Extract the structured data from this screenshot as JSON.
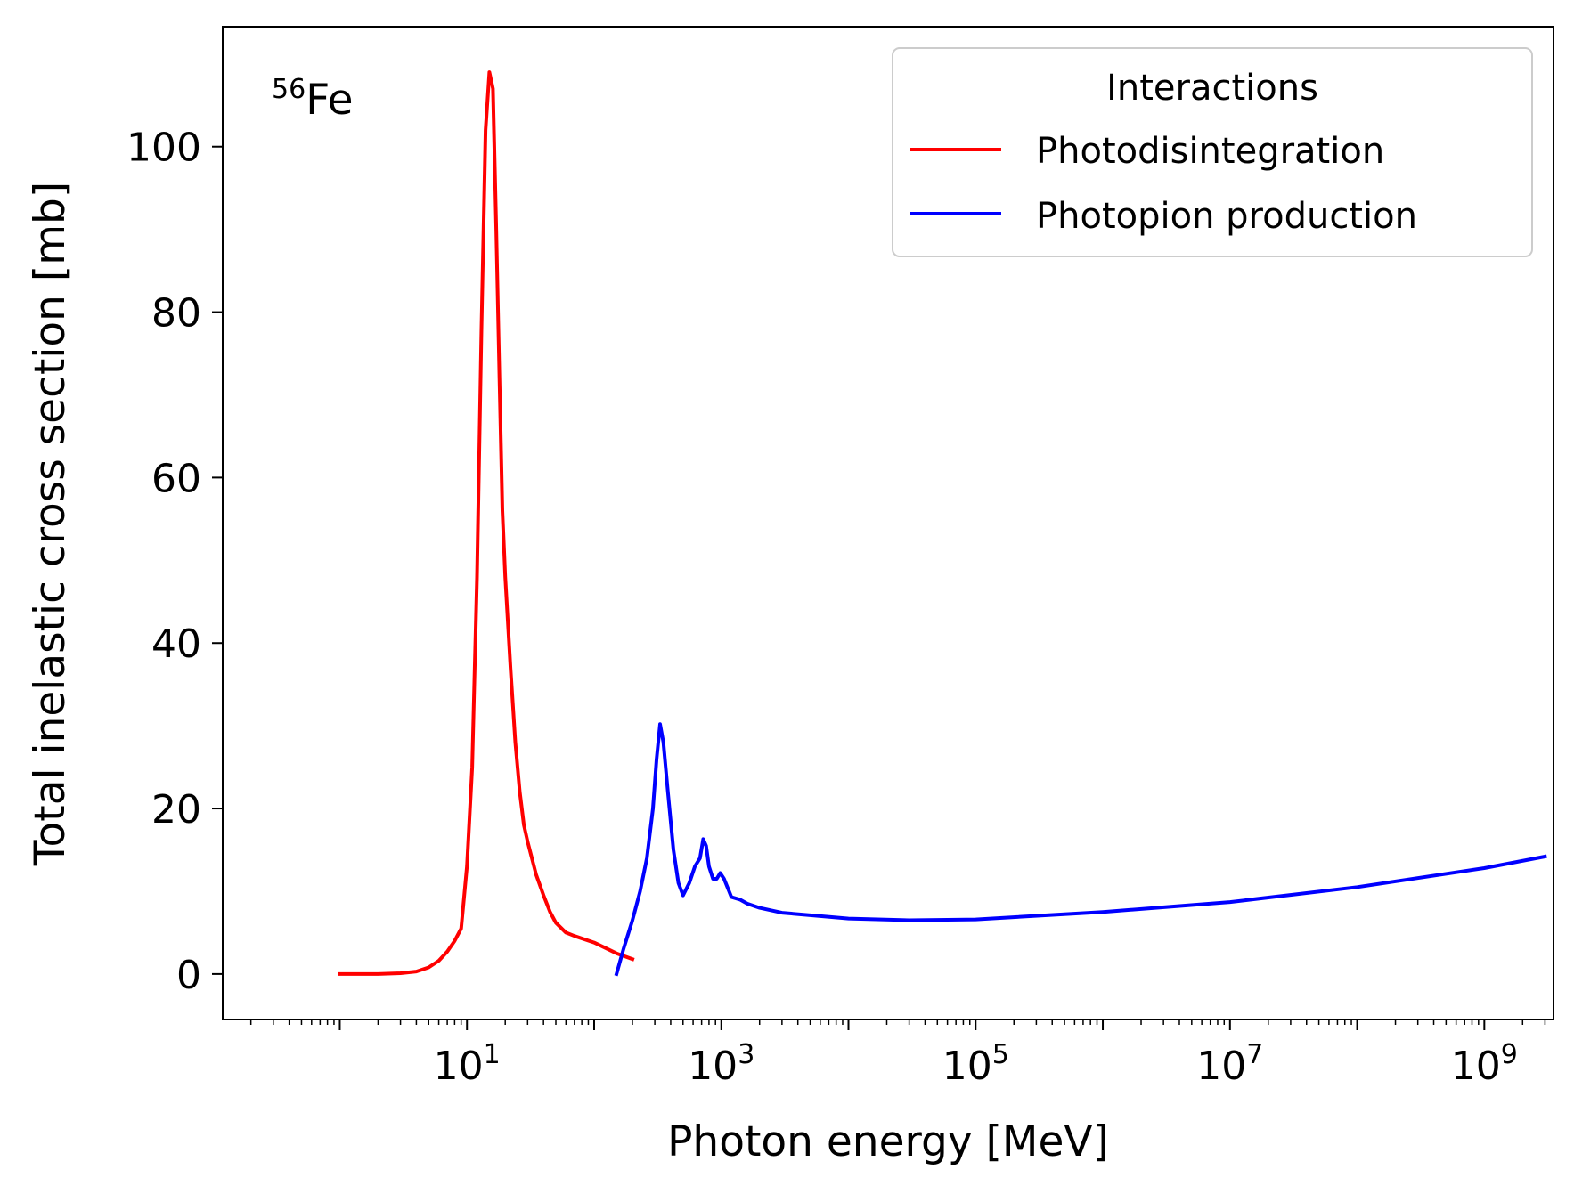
{
  "chart_data": {
    "type": "line",
    "x_scale": "log",
    "xlabel": "Photon energy [MeV]",
    "ylabel": "Total inelastic cross section [mb]",
    "xlim": [
      0.12,
      3500000000.0
    ],
    "ylim": [
      -5.5,
      114.5
    ],
    "grid": false,
    "annotation": {
      "base": "Fe",
      "superscript": "56"
    },
    "x_ticks": [
      {
        "value": 10,
        "base": "10",
        "exp": "1"
      },
      {
        "value": 1000,
        "base": "10",
        "exp": "3"
      },
      {
        "value": 100000,
        "base": "10",
        "exp": "5"
      },
      {
        "value": 10000000,
        "base": "10",
        "exp": "7"
      },
      {
        "value": 1000000000,
        "base": "10",
        "exp": "9"
      }
    ],
    "y_ticks": [
      {
        "value": 0,
        "label": "0"
      },
      {
        "value": 20,
        "label": "20"
      },
      {
        "value": 40,
        "label": "40"
      },
      {
        "value": 60,
        "label": "60"
      },
      {
        "value": 80,
        "label": "80"
      },
      {
        "value": 100,
        "label": "100"
      }
    ],
    "legend": {
      "title": "Interactions",
      "placement": "top-right"
    },
    "series": [
      {
        "name": "Photodisintegration",
        "color": "#ff0000",
        "x": [
          1,
          2,
          3,
          4,
          5,
          6,
          7,
          8,
          9,
          10,
          11,
          12,
          13,
          14,
          15,
          16,
          17,
          18,
          19,
          20,
          22,
          24,
          26,
          28,
          30,
          35,
          40,
          45,
          50,
          60,
          70,
          100,
          150,
          200
        ],
        "y": [
          0,
          0,
          0.1,
          0.3,
          0.8,
          1.6,
          2.7,
          4.0,
          5.5,
          13,
          25,
          48,
          78,
          102,
          109,
          107,
          90,
          72,
          56,
          48,
          37,
          28,
          22,
          18,
          16,
          12,
          9.5,
          7.5,
          6.2,
          5,
          4.6,
          3.8,
          2.5,
          1.8
        ]
      },
      {
        "name": "Photopion production",
        "color": "#0000ff",
        "x": [
          150,
          170,
          200,
          230,
          260,
          290,
          310,
          330,
          350,
          380,
          420,
          460,
          500,
          560,
          620,
          680,
          720,
          760,
          800,
          860,
          920,
          980,
          1050,
          1200,
          1400,
          1600,
          2000,
          3000,
          5000,
          10000,
          30000,
          100000,
          1000000,
          10000000,
          100000000,
          1000000000,
          3000000000
        ],
        "y": [
          0,
          3,
          6.5,
          10,
          14,
          20,
          26,
          30.2,
          28,
          22,
          15,
          11,
          9.5,
          11,
          13,
          14,
          16.3,
          15.5,
          13,
          11.5,
          11.5,
          12.2,
          11.5,
          9.3,
          9,
          8.5,
          8,
          7.4,
          7.1,
          6.7,
          6.5,
          6.6,
          7.5,
          8.7,
          10.5,
          12.8,
          14.2
        ]
      }
    ]
  }
}
